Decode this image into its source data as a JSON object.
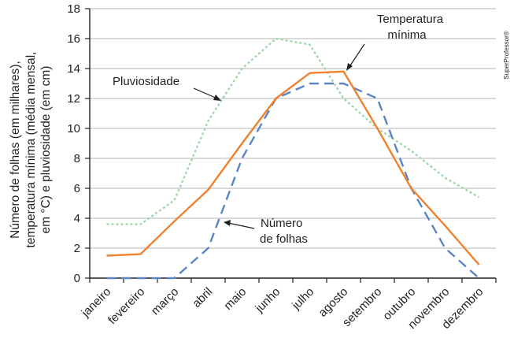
{
  "chart_data": {
    "type": "line",
    "categories": [
      "janeiro",
      "fevereiro",
      "março",
      "abril",
      "maio",
      "junho",
      "julho",
      "agosto",
      "setembro",
      "outubro",
      "novembro",
      "dezembro"
    ],
    "ylabel_lines": [
      "Número de folhas (em milhares),",
      "temperatura mínima (média mensal,",
      "em °C) e pluviosidade (em cm)"
    ],
    "ylim": [
      0,
      18
    ],
    "yticks": [
      "0",
      "2",
      "4",
      "6",
      "8",
      "10",
      "12",
      "14",
      "16",
      "18"
    ],
    "grid": true,
    "series": [
      {
        "name": "Temperatura mínima",
        "label_lines": [
          "Temperatura",
          "mínima"
        ],
        "color": "#f0812e",
        "style": "solid",
        "values": [
          1.5,
          1.6,
          3.8,
          5.9,
          9.0,
          12.0,
          13.7,
          13.8,
          10.0,
          6.0,
          3.5,
          0.9
        ]
      },
      {
        "name": "Pluviosidade",
        "label_lines": [
          "Pluviosidade"
        ],
        "color": "#9fd8a8",
        "style": "dotted",
        "values": [
          3.6,
          3.6,
          5.2,
          10.5,
          14.0,
          16.0,
          15.6,
          12.0,
          10.0,
          8.5,
          6.7,
          5.4
        ]
      },
      {
        "name": "Número de folhas",
        "label_lines": [
          "Número",
          "de folhas"
        ],
        "color": "#5a84c4",
        "style": "dashed",
        "values": [
          0,
          0,
          0,
          2.0,
          8.0,
          12.0,
          13.0,
          13.0,
          12.0,
          6.0,
          2.0,
          0
        ]
      }
    ],
    "credit": "SuperProfessor®"
  }
}
